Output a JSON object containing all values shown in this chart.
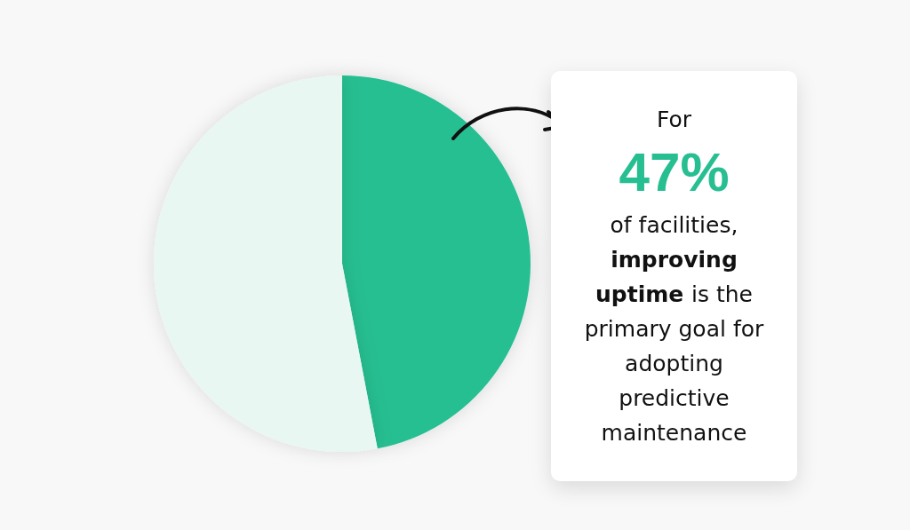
{
  "chart_data": {
    "type": "pie",
    "categories": [
      null,
      null
    ],
    "values": [
      47,
      53
    ],
    "colors": [
      "#27bf91",
      "#e9f7f3"
    ],
    "annotations": [
      "For",
      "47%",
      "of facilities,",
      "improving uptime",
      "is the primary goal for adopting predictive maintenance"
    ]
  }
}
